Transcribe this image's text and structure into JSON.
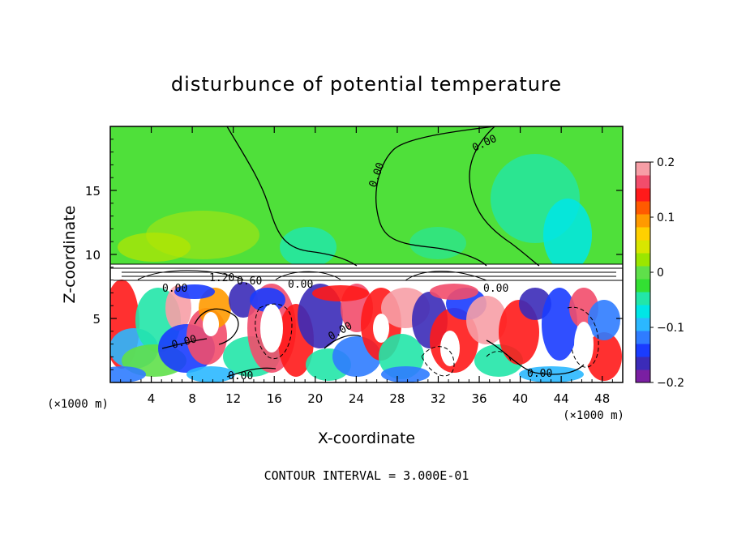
{
  "chart_data": {
    "type": "heatmap",
    "title": "disturbunce of potential temperature",
    "xlabel": "X-coordinate",
    "ylabel": "Z-coordinate",
    "x_unit_label": "(×1000 m)",
    "z_unit_label": "(×1000 m)",
    "xlim": [
      0,
      50
    ],
    "ylim": [
      0,
      20
    ],
    "x_ticks": [
      4,
      8,
      12,
      16,
      20,
      24,
      28,
      32,
      36,
      40,
      44,
      48
    ],
    "y_ticks": [
      5,
      10,
      15
    ],
    "colorbar": {
      "range": [
        -0.2,
        0.2
      ],
      "tick_values": [
        -0.2,
        -0.1,
        0,
        0.1,
        0.2
      ],
      "tick_labels": [
        "−0.2",
        "−0.1",
        "0",
        "0.1",
        "0.2"
      ],
      "colors": [
        "#7a1fa2",
        "#3b2bb8",
        "#1a3cff",
        "#2f7cff",
        "#2bb8ff",
        "#00e6e6",
        "#22e6a8",
        "#33e033",
        "#5fe04a",
        "#9be600",
        "#d8e600",
        "#ffd000",
        "#ff9a00",
        "#ff5a00",
        "#ff1a1a",
        "#f24d6b",
        "#f79ea6"
      ]
    },
    "contour_labels": [
      "0.00",
      "0.00",
      "0.00",
      "0.00",
      "0.00",
      "0.00",
      "0.00",
      "0.00",
      "1.20",
      "0.60",
      "0.00"
    ],
    "footer": "CONTOUR INTERVAL = 3.000E-01"
  }
}
